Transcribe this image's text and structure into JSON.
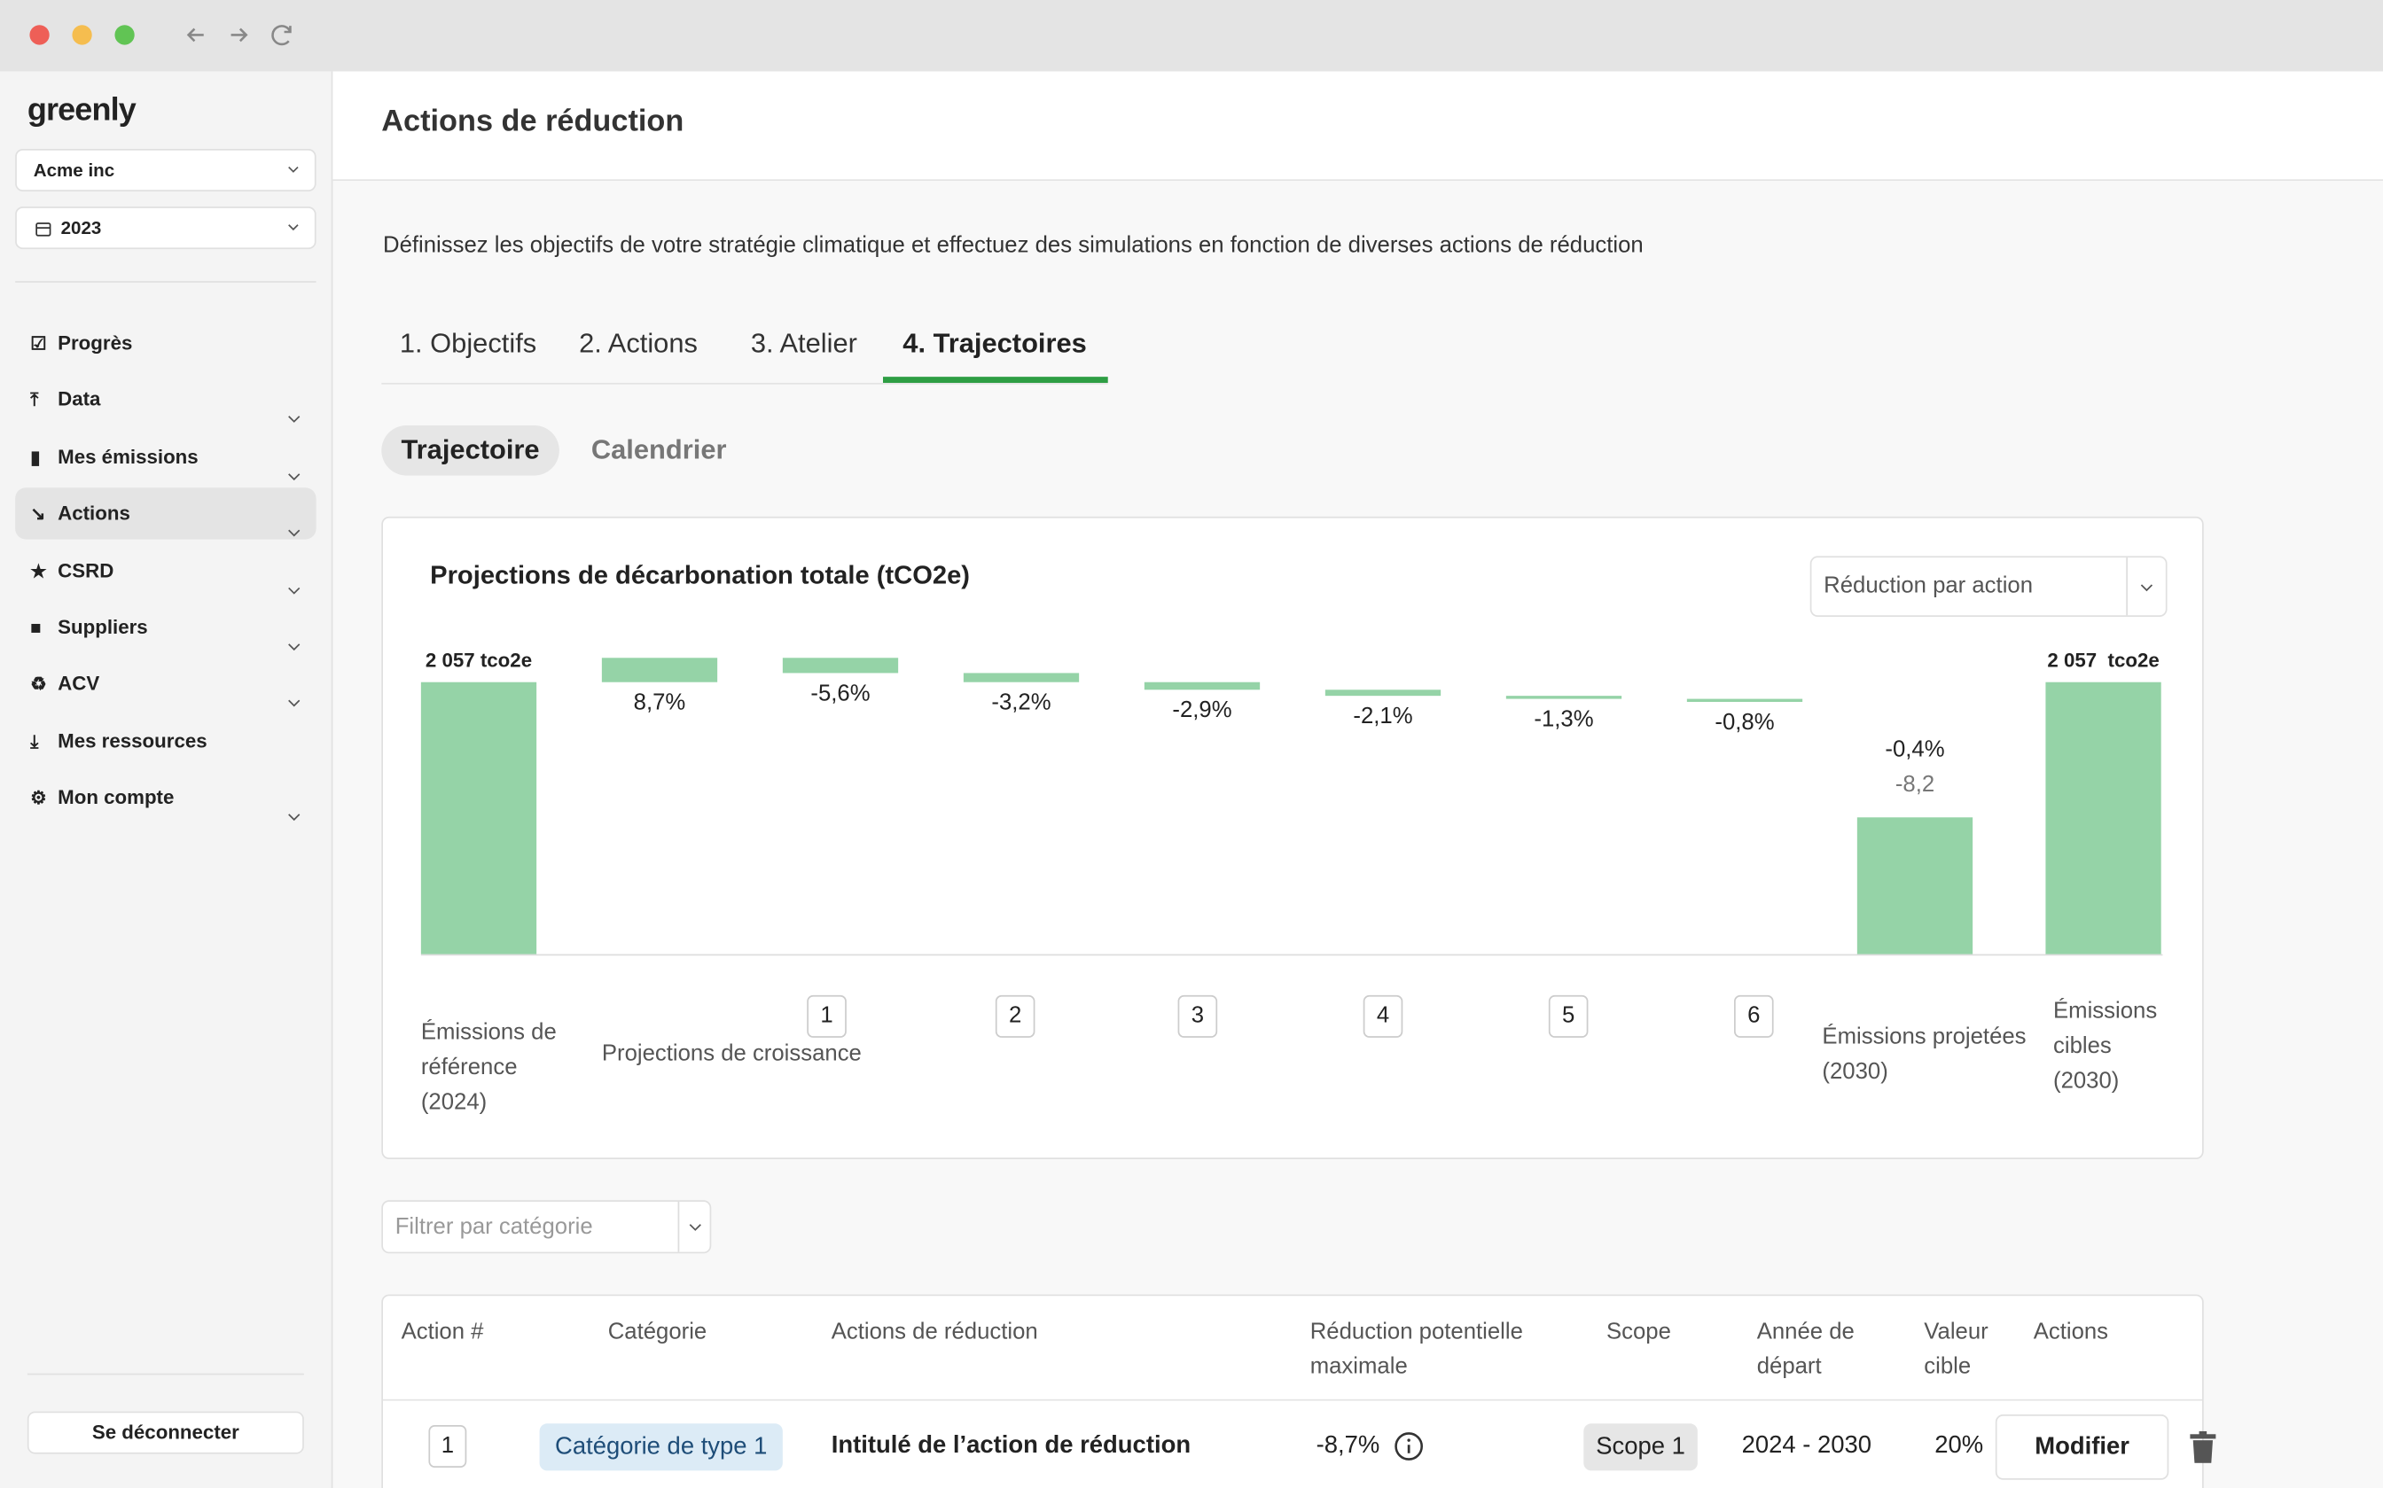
{
  "sidebar": {
    "logo": "greenly",
    "company": "Acme inc",
    "year": "2023",
    "menu": [
      "Progrès",
      "Data",
      "Mes émissions",
      "Actions",
      "CSRD",
      "Suppliers",
      "ACV",
      "Mes ressources",
      "Mon compte"
    ],
    "logout": "Se déconnecter"
  },
  "header": {
    "title": "Actions de réduction"
  },
  "description": "Définissez les objectifs de votre stratégie climatique et effectuez des simulations en fonction de diverses actions de réduction",
  "tabs": [
    "1. Objectifs",
    "2. Actions",
    "3. Atelier",
    "4. Trajectoires"
  ],
  "view_toggle": [
    "Trajectoire",
    "Calendrier"
  ],
  "chart_data": {
    "type": "waterfall",
    "title": "Projections de décarbonation totale (tCO2e)",
    "dropdown": "Réduction par action",
    "categories": [
      "Émissions de référence (2024)",
      "Projections de croissance",
      "1",
      "2",
      "3",
      "4",
      "5",
      "6",
      "Émissions projetées (2030)",
      "Émissions cibles (2030)"
    ],
    "values": [
      2057,
      8.7,
      -5.6,
      -3.2,
      -2.9,
      -2.1,
      -1.3,
      -0.8,
      1034,
      2057
    ],
    "value_labels": [
      "2 057 tco2e",
      "8,7%",
      "-5,6%",
      "-3,2%",
      "-2,9%",
      "-2,1%",
      "-1,3%",
      "-0,8%",
      null,
      "2 057  tco2e"
    ],
    "projected_labels": [
      "-0,4%",
      "-8,2"
    ],
    "color": "#95d3a7"
  },
  "filter": "Filtrer par catégorie",
  "table": {
    "columns": [
      "Action #",
      "Catégorie",
      "Actions de réduction",
      "Réduction potentielle maximale",
      "Scope",
      "Année de départ",
      "Valeur cible",
      "Actions"
    ],
    "rows": [
      [
        "1",
        "Catégorie de type 1",
        "Intitulé de l’action de réduction",
        "-8,7%",
        "Scope 1",
        "2024 - 2030",
        "20%",
        "Modifier"
      ]
    ]
  }
}
